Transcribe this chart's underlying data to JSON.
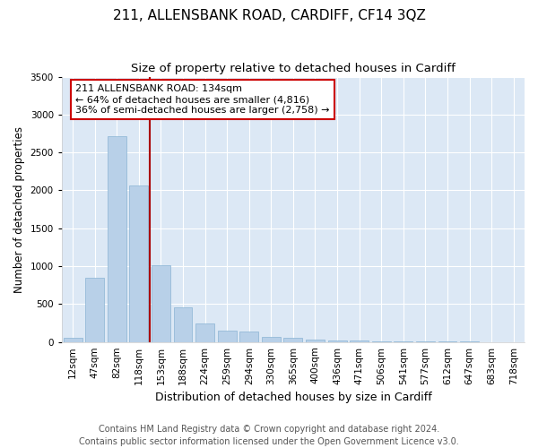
{
  "title": "211, ALLENSBANK ROAD, CARDIFF, CF14 3QZ",
  "subtitle": "Size of property relative to detached houses in Cardiff",
  "xlabel": "Distribution of detached houses by size in Cardiff",
  "ylabel": "Number of detached properties",
  "categories": [
    "12sqm",
    "47sqm",
    "82sqm",
    "118sqm",
    "153sqm",
    "188sqm",
    "224sqm",
    "259sqm",
    "294sqm",
    "330sqm",
    "365sqm",
    "400sqm",
    "436sqm",
    "471sqm",
    "506sqm",
    "541sqm",
    "577sqm",
    "612sqm",
    "647sqm",
    "683sqm",
    "718sqm"
  ],
  "values": [
    60,
    850,
    2720,
    2060,
    1010,
    460,
    245,
    155,
    140,
    65,
    50,
    30,
    20,
    15,
    10,
    8,
    5,
    4,
    3,
    2,
    2
  ],
  "bar_color": "#b8d0e8",
  "bar_edge_color": "#8ab4d4",
  "vline_color": "#aa0000",
  "vline_x": 3.5,
  "annotation_text": "211 ALLENSBANK ROAD: 134sqm\n← 64% of detached houses are smaller (4,816)\n36% of semi-detached houses are larger (2,758) →",
  "annotation_box_color": "#ffffff",
  "annotation_box_edge_color": "#cc0000",
  "ylim": [
    0,
    3500
  ],
  "yticks": [
    0,
    500,
    1000,
    1500,
    2000,
    2500,
    3000,
    3500
  ],
  "fig_bg_color": "#ffffff",
  "plot_bg_color": "#dce8f5",
  "grid_color": "#ffffff",
  "title_fontsize": 11,
  "subtitle_fontsize": 9.5,
  "xlabel_fontsize": 9,
  "ylabel_fontsize": 8.5,
  "tick_fontsize": 7.5,
  "annotation_fontsize": 8,
  "footnote_fontsize": 7,
  "footnote": "Contains HM Land Registry data © Crown copyright and database right 2024.\nContains public sector information licensed under the Open Government Licence v3.0."
}
